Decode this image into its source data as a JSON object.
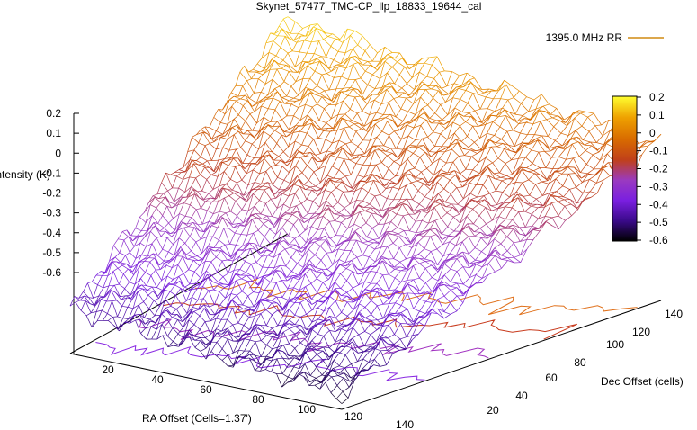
{
  "chart_data": {
    "type": "surface",
    "title": "Skynet_57477_TMC-CP_llp_18833_19644_cal",
    "legend": {
      "entries": [
        "1395.0 MHz RR"
      ],
      "placement": "top-right"
    },
    "zlabel": "Intensity (K)",
    "xlabel": "RA Offset (Cells=1.37')",
    "ylabel": "Dec Offset (cells)",
    "z_ticks": [
      "0.2",
      "0.1",
      "0",
      "-0.1",
      "-0.2",
      "-0.3",
      "-0.4",
      "-0.5",
      "-0.6"
    ],
    "x_ticks": [
      "20",
      "40",
      "60",
      "80",
      "100",
      "120",
      "140"
    ],
    "y_ticks": [
      "20",
      "40",
      "60",
      "80",
      "100",
      "120",
      "140"
    ],
    "zlim": [
      -0.6,
      0.2
    ],
    "xlim": [
      0,
      150
    ],
    "ylim": [
      0,
      150
    ],
    "colorbar": {
      "ticks": [
        "0.2",
        "0.1",
        "0",
        "-0.1",
        "-0.2",
        "-0.3",
        "-0.4",
        "-0.5",
        "-0.6"
      ],
      "range": [
        -0.6,
        0.2
      ],
      "colors": [
        "#000000",
        "#4b0fa8",
        "#8a2be2",
        "#b23a6a",
        "#cc4a00",
        "#e58a00",
        "#f5c800",
        "#ffff40"
      ]
    },
    "surface": {
      "description_values": "approximate intensity at grid corners (RA, Dec) -> K",
      "corners": [
        {
          "ra": 0,
          "dec": 0,
          "z": -0.45
        },
        {
          "ra": 150,
          "dec": 0,
          "z": -0.55
        },
        {
          "ra": 0,
          "dec": 150,
          "z": 0.15
        },
        {
          "ra": 150,
          "dec": 150,
          "z": -0.05
        }
      ]
    },
    "contours": [
      {
        "level": -0.1,
        "color": "#e0701a"
      },
      {
        "level": -0.2,
        "color": "#c83a1c"
      },
      {
        "level": -0.3,
        "color": "#a030c0"
      },
      {
        "level": -0.4,
        "color": "#8a2be2"
      }
    ]
  }
}
